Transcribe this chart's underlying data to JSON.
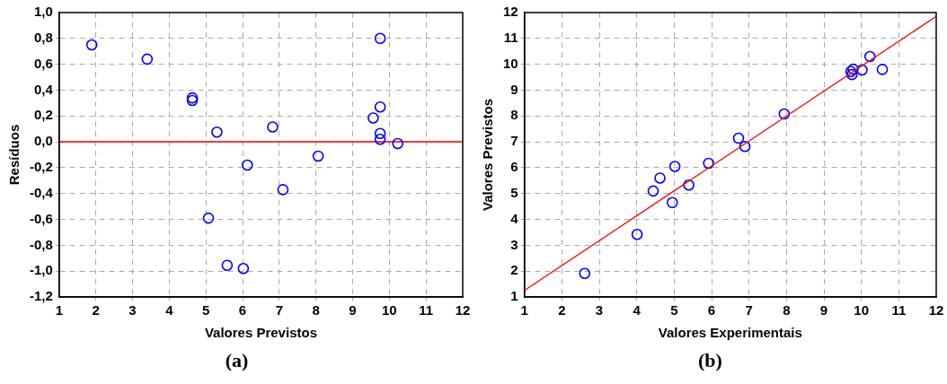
{
  "chart_data": [
    {
      "type": "scatter",
      "xlabel": "Valores Previstos",
      "ylabel": "Resíduos",
      "annotations": [
        "(a)"
      ],
      "xlim": [
        1,
        12
      ],
      "xticks": [
        1,
        2,
        3,
        4,
        5,
        6,
        7,
        8,
        9,
        10,
        11,
        12
      ],
      "ylim": [
        -1.2,
        1.0
      ],
      "yticks": [
        {
          "value": 1.0,
          "label": "1,0"
        },
        {
          "value": 0.8,
          "label": "0,8"
        },
        {
          "value": 0.6,
          "label": "0,6"
        },
        {
          "value": 0.4,
          "label": "0,4"
        },
        {
          "value": 0.2,
          "label": "0,2"
        },
        {
          "value": 0,
          "label": "0,0"
        },
        {
          "value": -0.2,
          "label": "-0,2"
        },
        {
          "value": -0.4,
          "label": "-0,4"
        },
        {
          "value": -0.6,
          "label": "-0,6"
        },
        {
          "value": -0.8,
          "label": "-0,8"
        },
        {
          "value": -1.0,
          "label": "-1,0"
        },
        {
          "value": -1.2,
          "label": "-1,2"
        }
      ],
      "grid": true,
      "legend": false,
      "marker": "circle",
      "ref_lines": [
        {
          "axis": "y",
          "value": 0,
          "color": "#ff0000",
          "line_style": "solid"
        }
      ],
      "series": [
        {
          "color": "#0000ff",
          "x": [
            1.89,
            3.4,
            4.63,
            4.63,
            5.3,
            6.82,
            6.13,
            7.1,
            5.07,
            5.58,
            6.02,
            8.06,
            9.75,
            9.75,
            9.56,
            9.75,
            9.75,
            10.23
          ],
          "values": [
            0.75,
            0.64,
            0.34,
            0.32,
            0.075,
            0.115,
            -0.18,
            -0.37,
            -0.59,
            -0.955,
            -0.98,
            -0.11,
            0.8,
            0.27,
            0.185,
            0.065,
            0.02,
            -0.013
          ]
        }
      ]
    },
    {
      "type": "scatter",
      "xlabel": "Valores Experimentais",
      "ylabel": "Valores Previstos",
      "annotations": [
        "(b)"
      ],
      "xlim": [
        1,
        12
      ],
      "xticks": [
        1,
        2,
        3,
        4,
        5,
        6,
        7,
        8,
        9,
        10,
        11,
        12
      ],
      "ylim": [
        1,
        12
      ],
      "yticks": [
        1,
        2,
        3,
        4,
        5,
        6,
        7,
        8,
        9,
        10,
        11,
        12
      ],
      "grid": true,
      "legend": false,
      "marker": "circle",
      "series": [
        {
          "color": "#0000ff",
          "x": [
            2.61,
            4.01,
            4.44,
            4.62,
            4.95,
            5.02,
            5.39,
            5.92,
            6.72,
            6.89,
            7.94,
            9.72,
            9.78,
            9.75,
            10.02,
            10.23,
            10.56
          ],
          "values": [
            1.91,
            3.42,
            5.1,
            5.6,
            4.65,
            6.05,
            5.33,
            6.17,
            7.14,
            6.82,
            8.08,
            9.72,
            9.81,
            9.6,
            9.78,
            10.3,
            9.8
          ]
        },
        {
          "type": "line",
          "color": "#ff0000",
          "marker": "none",
          "x": [
            1,
            12
          ],
          "values": [
            1.25,
            11.85
          ]
        }
      ]
    }
  ]
}
